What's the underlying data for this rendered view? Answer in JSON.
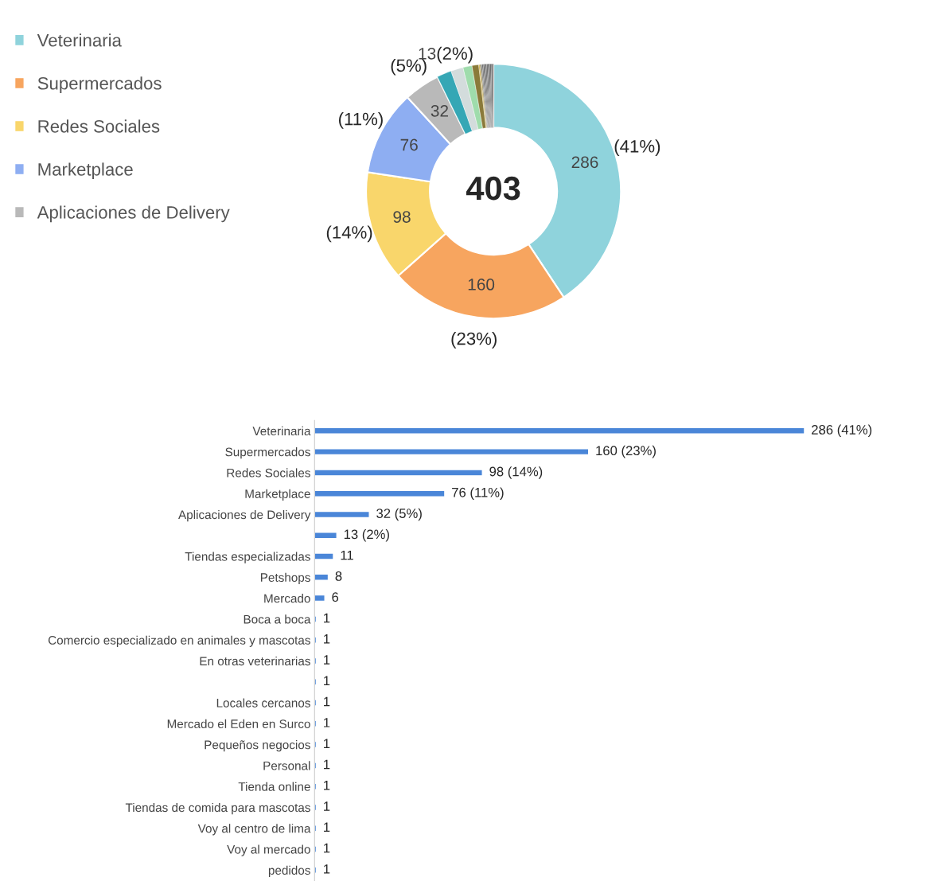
{
  "chart_data": [
    {
      "type": "donut",
      "title": "403",
      "categories": [
        "Veterinaria",
        "Supermercados",
        "Redes Sociales",
        "Marketplace",
        "Aplicaciones de Delivery",
        null,
        null,
        null,
        null,
        null,
        null,
        null,
        null,
        null,
        null,
        null,
        null,
        null,
        null,
        null,
        null,
        null
      ],
      "values": [
        286,
        160,
        98,
        76,
        32,
        13,
        11,
        8,
        6,
        1,
        1,
        1,
        1,
        1,
        1,
        1,
        1,
        1,
        1,
        1,
        1,
        1
      ],
      "colors": [
        "#8fd3dc",
        "#f7a55f",
        "#f9d66b",
        "#8eaef2",
        "#b9b9b9",
        "#35a7b5",
        "#d3dcdc",
        "#9fdcac",
        "#8a7a3a",
        "#c9a227",
        "#7a6a2a",
        "#5a5a5a",
        "#404040",
        "#333333",
        "#333333",
        "#333333",
        "#333333",
        "#333333",
        "#333333",
        "#333333",
        "#333333",
        "#333333"
      ],
      "value_labels": [
        "286",
        "160",
        "98",
        "76",
        "32",
        "13",
        null,
        null,
        null,
        null,
        null,
        null,
        null,
        null,
        null,
        null,
        null,
        null,
        null,
        null,
        null,
        null
      ],
      "annotations": [
        "(41%)",
        "(23%)",
        "(14%)",
        "(11%)",
        "(5%)",
        "(2%)"
      ],
      "legend": "top left"
    },
    {
      "type": "bar",
      "orientation": "horizontal",
      "categories": [
        "Veterinaria",
        "Supermercados",
        "Redes Sociales",
        "Marketplace",
        "Aplicaciones de Delivery",
        null,
        "Tiendas especializadas",
        "Petshops",
        "Mercado",
        "Boca a boca",
        "Comercio especializado en animales y mascotas",
        "En otras veterinarias",
        null,
        "Locales cercanos",
        "Mercado el Eden en Surco",
        "Pequeños negocios",
        "Personal",
        "Tienda online",
        "Tiendas de comida para mascotas",
        "Voy al centro de lima",
        "Voy al mercado",
        "pedidos"
      ],
      "values": [
        286,
        160,
        98,
        76,
        32,
        13,
        11,
        8,
        6,
        1,
        1,
        1,
        1,
        1,
        1,
        1,
        1,
        1,
        1,
        1,
        1,
        1
      ],
      "value_labels": [
        "286 (41%)",
        "160 (23%)",
        "98 (14%)",
        "76 (11%)",
        "32 (5%)",
        "13 (2%)",
        "11",
        "8",
        "6",
        "1",
        "1",
        "1",
        "1",
        "1",
        "1",
        "1",
        "1",
        "1",
        "1",
        "1",
        "1",
        "1"
      ],
      "color": "#4a86d8",
      "tick_labels": "y"
    }
  ]
}
